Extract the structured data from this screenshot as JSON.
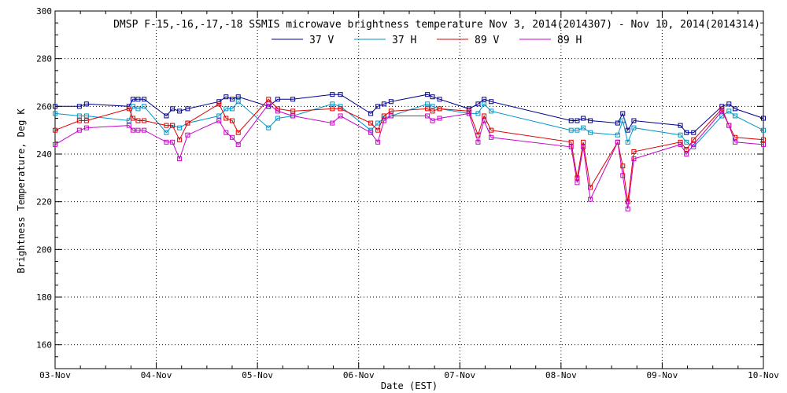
{
  "chart_data": {
    "type": "line",
    "title": "DMSP F-15,-16,-17,-18 SSMIS microwave brightness temperature Nov  3, 2014(2014307) - Nov 10, 2014(2014314)",
    "xlabel": "Date (EST)",
    "ylabel": "Brightness Temperature, Deg K",
    "xlim": [
      0,
      7
    ],
    "ylim": [
      150,
      300
    ],
    "grid": true,
    "legend_position": "top-center",
    "x_tick_values": [
      0,
      1,
      2,
      3,
      4,
      5,
      6,
      7
    ],
    "x_tick_labels": [
      "03-Nov",
      "04-Nov",
      "05-Nov",
      "06-Nov",
      "07-Nov",
      "08-Nov",
      "09-Nov",
      "10-Nov"
    ],
    "y_tick_values": [
      160,
      180,
      200,
      220,
      240,
      260,
      280,
      300
    ],
    "y_tick_labels": [
      "160",
      "180",
      "200",
      "220",
      "240",
      "260",
      "280",
      "300"
    ],
    "x_unit": "days since 03-Nov 00:00 EST",
    "series": [
      {
        "name": "37 V",
        "color": "#00008b",
        "points": [
          [
            0.0,
            260
          ],
          [
            0.24,
            260
          ],
          [
            0.31,
            261
          ],
          [
            0.73,
            260
          ],
          [
            0.77,
            263
          ],
          [
            0.82,
            263
          ],
          [
            0.88,
            263
          ],
          [
            1.1,
            256
          ],
          [
            1.16,
            259
          ],
          [
            1.23,
            258
          ],
          [
            1.31,
            259
          ],
          [
            1.62,
            262
          ],
          [
            1.69,
            264
          ],
          [
            1.75,
            263
          ],
          [
            1.81,
            264
          ],
          [
            2.11,
            260
          ],
          [
            2.2,
            263
          ],
          [
            2.35,
            263
          ],
          [
            2.74,
            265
          ],
          [
            2.82,
            265
          ],
          [
            3.12,
            257
          ],
          [
            3.19,
            260
          ],
          [
            3.25,
            261
          ],
          [
            3.32,
            262
          ],
          [
            3.68,
            265
          ],
          [
            3.73,
            264
          ],
          [
            3.8,
            263
          ],
          [
            4.09,
            259
          ],
          [
            4.18,
            261
          ],
          [
            4.24,
            263
          ],
          [
            4.31,
            262
          ],
          [
            5.1,
            254
          ],
          [
            5.16,
            254
          ],
          [
            5.22,
            255
          ],
          [
            5.29,
            254
          ],
          [
            5.56,
            253
          ],
          [
            5.61,
            257
          ],
          [
            5.66,
            250
          ],
          [
            5.72,
            254
          ],
          [
            6.18,
            252
          ],
          [
            6.24,
            249
          ],
          [
            6.31,
            249
          ],
          [
            6.59,
            260
          ],
          [
            6.66,
            261
          ],
          [
            6.72,
            259
          ],
          [
            7.0,
            255
          ]
        ]
      },
      {
        "name": "37 H",
        "color": "#0096c8",
        "points": [
          [
            0.0,
            257
          ],
          [
            0.24,
            256
          ],
          [
            0.31,
            256
          ],
          [
            0.73,
            254
          ],
          [
            0.77,
            260
          ],
          [
            0.82,
            259
          ],
          [
            0.88,
            260
          ],
          [
            1.1,
            249
          ],
          [
            1.16,
            252
          ],
          [
            1.23,
            251
          ],
          [
            1.31,
            253
          ],
          [
            1.62,
            256
          ],
          [
            1.69,
            259
          ],
          [
            1.75,
            259
          ],
          [
            1.81,
            262
          ],
          [
            2.11,
            251
          ],
          [
            2.2,
            255
          ],
          [
            2.35,
            256
          ],
          [
            2.74,
            261
          ],
          [
            2.82,
            260
          ],
          [
            3.12,
            250
          ],
          [
            3.19,
            253
          ],
          [
            3.25,
            255
          ],
          [
            3.32,
            256
          ],
          [
            3.68,
            261
          ],
          [
            3.73,
            260
          ],
          [
            3.8,
            259
          ],
          [
            4.09,
            257
          ],
          [
            4.18,
            257
          ],
          [
            4.24,
            261
          ],
          [
            4.31,
            258
          ],
          [
            5.1,
            250
          ],
          [
            5.16,
            250
          ],
          [
            5.22,
            251
          ],
          [
            5.29,
            249
          ],
          [
            5.56,
            248
          ],
          [
            5.61,
            254
          ],
          [
            5.66,
            245
          ],
          [
            5.72,
            251
          ],
          [
            6.18,
            248
          ],
          [
            6.24,
            245
          ],
          [
            6.31,
            243
          ],
          [
            6.59,
            256
          ],
          [
            6.66,
            258
          ],
          [
            6.72,
            256
          ],
          [
            7.0,
            250
          ]
        ]
      },
      {
        "name": "89 V",
        "color": "#dc0000",
        "points": [
          [
            0.0,
            250
          ],
          [
            0.24,
            254
          ],
          [
            0.31,
            254
          ],
          [
            0.73,
            259
          ],
          [
            0.77,
            255
          ],
          [
            0.82,
            254
          ],
          [
            0.88,
            254
          ],
          [
            1.1,
            252
          ],
          [
            1.16,
            252
          ],
          [
            1.23,
            246
          ],
          [
            1.31,
            253
          ],
          [
            1.62,
            261
          ],
          [
            1.69,
            255
          ],
          [
            1.75,
            254
          ],
          [
            1.81,
            249
          ],
          [
            2.11,
            263
          ],
          [
            2.2,
            259
          ],
          [
            2.35,
            258
          ],
          [
            2.74,
            259
          ],
          [
            2.82,
            259
          ],
          [
            3.12,
            253
          ],
          [
            3.19,
            250
          ],
          [
            3.25,
            256
          ],
          [
            3.32,
            258
          ],
          [
            3.68,
            259
          ],
          [
            3.73,
            258
          ],
          [
            3.8,
            259
          ],
          [
            4.09,
            258
          ],
          [
            4.18,
            248
          ],
          [
            4.24,
            256
          ],
          [
            4.31,
            250
          ],
          [
            5.1,
            245
          ],
          [
            5.16,
            230
          ],
          [
            5.22,
            245
          ],
          [
            5.29,
            226
          ],
          [
            5.56,
            245
          ],
          [
            5.61,
            235
          ],
          [
            5.66,
            220
          ],
          [
            5.72,
            241
          ],
          [
            6.18,
            245
          ],
          [
            6.24,
            242
          ],
          [
            6.31,
            246
          ],
          [
            6.59,
            259
          ],
          [
            6.66,
            252
          ],
          [
            6.72,
            247
          ],
          [
            7.0,
            246
          ]
        ]
      },
      {
        "name": "89 H",
        "color": "#c800c8",
        "points": [
          [
            0.0,
            244
          ],
          [
            0.24,
            250
          ],
          [
            0.31,
            251
          ],
          [
            0.73,
            252
          ],
          [
            0.77,
            250
          ],
          [
            0.82,
            250
          ],
          [
            0.88,
            250
          ],
          [
            1.1,
            245
          ],
          [
            1.16,
            245
          ],
          [
            1.23,
            238
          ],
          [
            1.31,
            248
          ],
          [
            1.62,
            254
          ],
          [
            1.69,
            249
          ],
          [
            1.75,
            247
          ],
          [
            1.81,
            244
          ],
          [
            2.11,
            261
          ],
          [
            2.2,
            258
          ],
          [
            2.35,
            256
          ],
          [
            2.74,
            253
          ],
          [
            2.82,
            256
          ],
          [
            3.12,
            249
          ],
          [
            3.19,
            245
          ],
          [
            3.25,
            254
          ],
          [
            3.32,
            256
          ],
          [
            3.68,
            256
          ],
          [
            3.73,
            254
          ],
          [
            3.8,
            255
          ],
          [
            4.09,
            257
          ],
          [
            4.18,
            245
          ],
          [
            4.24,
            254
          ],
          [
            4.31,
            247
          ],
          [
            5.1,
            243
          ],
          [
            5.16,
            228
          ],
          [
            5.22,
            243
          ],
          [
            5.29,
            221
          ],
          [
            5.56,
            245
          ],
          [
            5.61,
            231
          ],
          [
            5.66,
            217
          ],
          [
            5.72,
            238
          ],
          [
            6.18,
            244
          ],
          [
            6.24,
            240
          ],
          [
            6.31,
            244
          ],
          [
            6.59,
            258
          ],
          [
            6.66,
            252
          ],
          [
            6.72,
            245
          ],
          [
            7.0,
            244
          ]
        ]
      }
    ]
  }
}
